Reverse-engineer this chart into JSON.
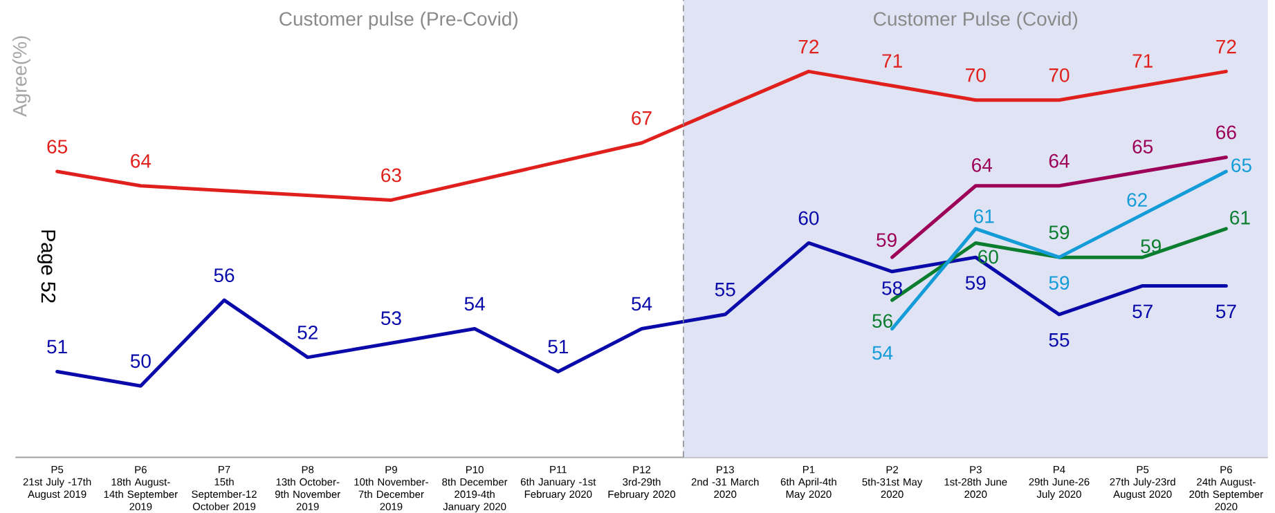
{
  "chart_data": {
    "type": "line",
    "ylabel": "Agree(%)",
    "annotations": [
      "Customer pulse (Pre-Covid)",
      "Page 52"
    ],
    "categories": [
      "P5\n21st July -17th\nAugust 2019",
      "P6\n18th August-\n14th September\n2019",
      "P7\n15th\nSeptember-12\nOctober 2019",
      "P8\n13th October-\n9th November\n2019",
      "P9\n10th November-\n7th December\n2019",
      "P10\n8th December\n2019-4th\nJanuary 2020",
      "P11\n6th January -1st\nFebruary 2020",
      "P12\n3rd-29th\nFebruary 2020",
      "P13\n2nd -31 March\n2020",
      "P1\n6th April-4th\nMay 2020",
      "P2\n5th-31st May\n2020",
      "P3\n1st-28th June\n2020",
      "P4\n29th June-26\nJuly 2020",
      "P5\n27th July-23rd\nAugust 2020",
      "P6\n24th August-\n20th September\n2020"
    ],
    "series": [
      {
        "color": "#e0201c",
        "values": [
          65,
          64,
          null,
          null,
          63,
          null,
          null,
          67,
          null,
          72,
          71,
          70,
          70,
          71,
          72
        ]
      },
      {
        "color": "#0a0aaa",
        "values": [
          51,
          50,
          56,
          52,
          53,
          54,
          51,
          54,
          55,
          60,
          58,
          59,
          55,
          57,
          57
        ]
      },
      {
        "color": "#9c0058",
        "values": [
          null,
          null,
          null,
          null,
          null,
          null,
          null,
          null,
          null,
          null,
          59,
          64,
          64,
          65,
          66
        ]
      },
      {
        "color": "#0a7d2e",
        "values": [
          null,
          null,
          null,
          null,
          null,
          null,
          null,
          null,
          null,
          null,
          56,
          60,
          59,
          59,
          61
        ]
      },
      {
        "color": "#149cd8",
        "values": [
          null,
          null,
          null,
          null,
          null,
          null,
          null,
          null,
          null,
          null,
          54,
          61,
          59,
          62,
          65
        ]
      }
    ],
    "ylim": [
      45,
      77
    ],
    "data_labels": true,
    "line_style": "solid",
    "bands": [
      {
        "axis": "x",
        "from": "P13\n2nd -31 March\n2020",
        "to": "P6\n24th August-\n20th September\n2020",
        "label": "Customer Pulse (Covid)",
        "color": "#e0e3f3"
      }
    ]
  }
}
